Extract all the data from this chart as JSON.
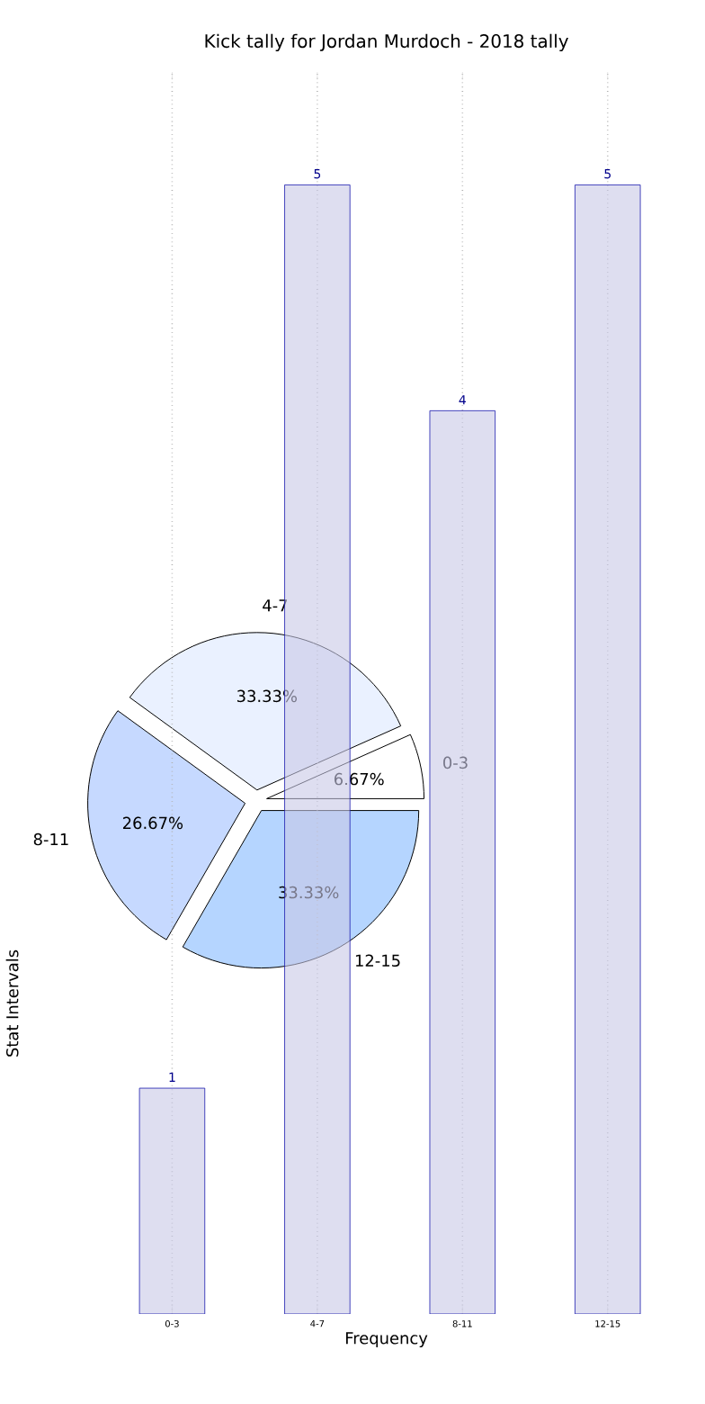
{
  "chart_data": [
    {
      "type": "bar",
      "title": "Kick tally for Jordan Murdoch - 2018 tally",
      "xlabel": "Frequency",
      "ylabel": "Stat Intervals",
      "categories": [
        "0-3",
        "4-7",
        "8-11",
        "12-15"
      ],
      "values": [
        1,
        5,
        4,
        5
      ],
      "value_labels": [
        "1",
        "5",
        "4",
        "5"
      ],
      "color": "#c8c8e6",
      "ylim": [
        0,
        5.5
      ],
      "tick_labels": "x",
      "grid": "x"
    },
    {
      "type": "pie",
      "categories": [
        "0-3",
        "4-7",
        "8-11",
        "12-15"
      ],
      "values": [
        6.67,
        33.33,
        26.67,
        33.33
      ],
      "value_labels": [
        "6.67%",
        "33.33%",
        "26.67%",
        "33.33%"
      ],
      "colors": [
        "#ffffff",
        "#eaf1ff",
        "#c6d9ff",
        "#b5d5ff"
      ]
    }
  ]
}
